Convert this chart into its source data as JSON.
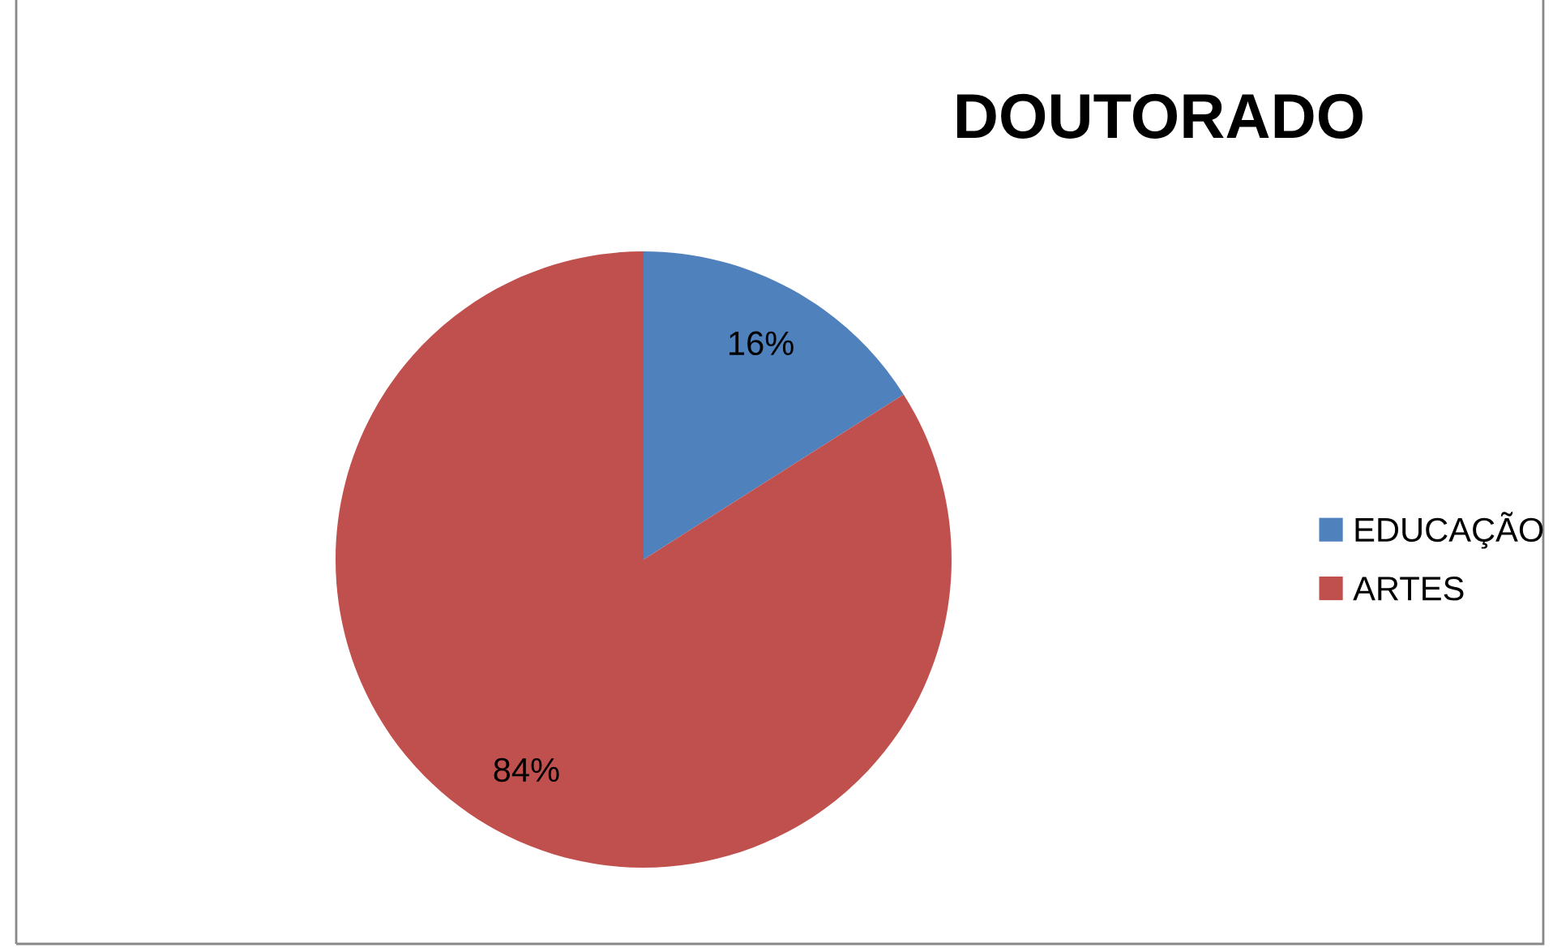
{
  "chart_data": {
    "type": "pie",
    "title": "DOUTORADO",
    "categories": [
      "EDUCAÇÃO",
      "ARTES"
    ],
    "values": [
      16,
      84
    ],
    "colors": [
      "#4f81bd",
      "#c0504d"
    ],
    "value_labels": [
      "16%",
      "84%"
    ],
    "legend": "right"
  }
}
